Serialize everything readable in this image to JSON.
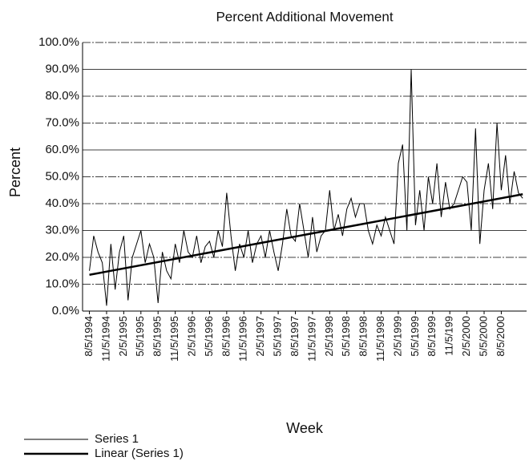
{
  "chart_data": {
    "type": "line",
    "title": "Percent Additional Movement",
    "x_label": "Week",
    "y_label": "Percent",
    "categories": [
      "8/5/1994",
      null,
      null,
      null,
      "11/5/1994",
      null,
      null,
      null,
      "2/5/1995",
      null,
      null,
      null,
      "5/5/1995",
      null,
      null,
      null,
      "8/5/1995",
      null,
      null,
      null,
      "11/5/1995",
      null,
      null,
      null,
      "2/5/1996",
      null,
      null,
      null,
      "5/5/1996",
      null,
      null,
      null,
      "8/5/1996",
      null,
      null,
      null,
      "11/5/1996",
      null,
      null,
      null,
      "2/5/1997",
      null,
      null,
      null,
      "5/5/1997",
      null,
      null,
      null,
      "8/5/1997",
      null,
      null,
      null,
      "11/5/1997",
      null,
      null,
      null,
      "2/5/1998",
      null,
      null,
      null,
      "5/5/1998",
      null,
      null,
      null,
      "8/5/1998",
      null,
      null,
      null,
      "11/5/1998",
      null,
      null,
      null,
      "2/5/1999",
      null,
      null,
      null,
      "5/5/1999",
      null,
      null,
      null,
      "8/5/1999",
      null,
      null,
      null,
      "11/5/199",
      null,
      null,
      null,
      "2/5/2000",
      null,
      null,
      null,
      "5/5/2000",
      null,
      null,
      null,
      "8/5/2000",
      null,
      null,
      null,
      null,
      null
    ],
    "series": [
      {
        "name": "Series 1",
        "color": "#000000",
        "values": [
          15,
          28,
          22,
          18,
          2,
          25,
          8,
          22,
          28,
          4,
          20,
          25,
          30,
          18,
          25,
          20,
          3,
          22,
          15,
          12,
          25,
          18,
          30,
          22,
          20,
          28,
          18,
          24,
          26,
          20,
          30,
          24,
          44,
          28,
          15,
          25,
          20,
          30,
          18,
          25,
          28,
          20,
          30,
          22,
          15,
          25,
          38,
          28,
          26,
          40,
          30,
          20,
          35,
          22,
          28,
          30,
          45,
          30,
          36,
          28,
          38,
          42,
          35,
          40,
          40,
          30,
          25,
          32,
          28,
          35,
          30,
          25,
          55,
          62,
          30,
          90,
          32,
          45,
          30,
          50,
          40,
          55,
          35,
          48,
          38,
          40,
          45,
          50,
          48,
          30,
          68,
          25,
          45,
          55,
          38,
          70,
          45,
          58,
          40,
          52,
          44,
          42
        ]
      }
    ],
    "trend": {
      "name": "Linear (Series 1)",
      "color": "#000000",
      "values": [
        13.5,
        43.5
      ]
    },
    "ylim": [
      0,
      100
    ],
    "yticks": [
      {
        "value": 0,
        "label": "0.0%"
      },
      {
        "value": 10,
        "label": "10.0%"
      },
      {
        "value": 20,
        "label": "20.0%"
      },
      {
        "value": 30,
        "label": "30.0%"
      },
      {
        "value": 40,
        "label": "40.0%"
      },
      {
        "value": 50,
        "label": "50.0%"
      },
      {
        "value": 60,
        "label": "60.0%"
      },
      {
        "value": 70,
        "label": "70.0%"
      },
      {
        "value": 80,
        "label": "80.0%"
      },
      {
        "value": 90,
        "label": "90.0%"
      },
      {
        "value": 100,
        "label": "100.0%"
      }
    ],
    "grid": true
  }
}
